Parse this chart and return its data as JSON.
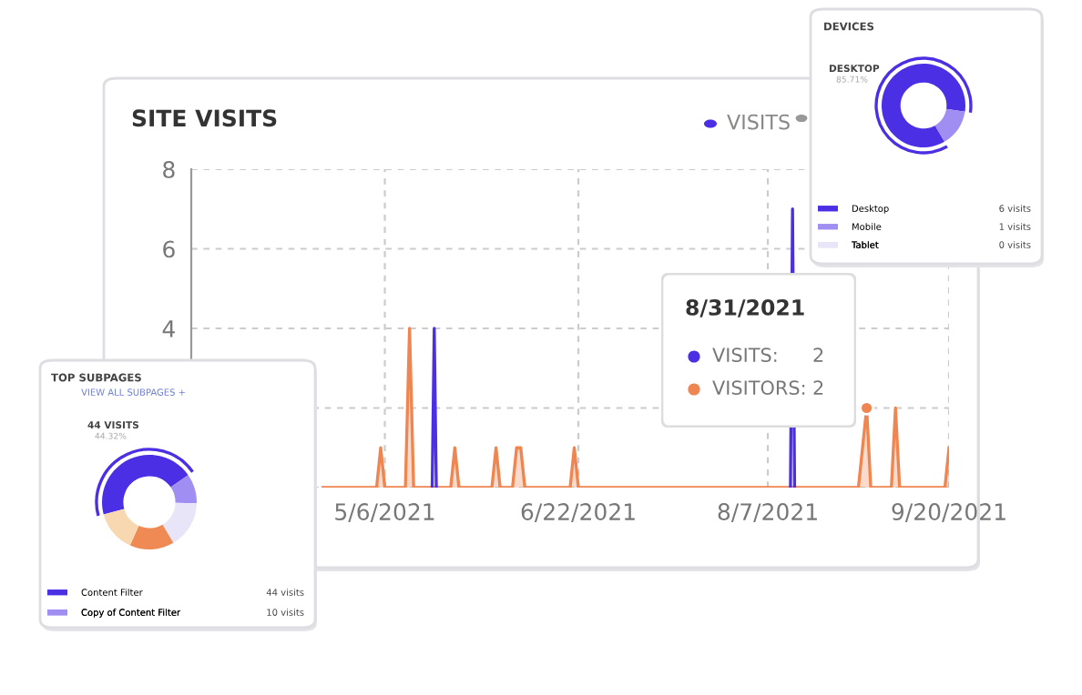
{
  "chart_data": [
    {
      "type": "area",
      "title": "SITE VISITS",
      "xlim": [
        "2021-03-20",
        "2021-09-20"
      ],
      "ylim": [
        0,
        8
      ],
      "xticks": [
        {
          "value": "2021-05-06",
          "label": "5/6/2021"
        },
        {
          "value": "2021-06-22",
          "label": "6/22/2021"
        },
        {
          "value": "2021-08-07",
          "label": "8/7/2021"
        },
        {
          "value": "2021-09-20",
          "label": "9/20/2021"
        }
      ],
      "yticks": [
        {
          "value": 0,
          "label": null
        },
        {
          "value": 2,
          "label": null
        },
        4,
        6,
        8
      ],
      "grid": true,
      "legend": "top right",
      "annotations": [
        "8/31/2021",
        "VISITS:",
        "2",
        "2"
      ],
      "series": [
        {
          "name": "VISITS",
          "type": "line",
          "color": "#4b2fe4",
          "x": [
            "2021-05-17T12:00",
            "2021-05-18",
            "2021-05-18T12:00",
            null,
            "2021-08-12T12:00",
            "2021-08-13",
            "2021-08-13T12:00"
          ],
          "values": [
            0,
            4,
            0,
            null,
            0,
            7,
            0
          ]
        },
        {
          "name": "VISITORS:",
          "type": "area",
          "color": "#ef8550",
          "x": [
            "2021-04-21",
            "2021-05-04",
            "2021-05-05",
            "2021-05-06",
            "2021-05-11",
            "2021-05-12",
            "2021-05-13",
            "2021-05-22",
            "2021-05-23",
            "2021-05-24",
            "2021-06-01",
            "2021-06-02",
            "2021-06-03",
            "2021-06-06",
            "2021-06-07",
            "2021-06-08",
            "2021-06-09",
            "2021-06-20",
            "2021-06-21",
            "2021-06-22",
            "2021-08-10",
            "2021-08-11",
            "2021-08-15",
            "2021-08-16",
            "2021-08-20",
            "2021-08-21",
            "2021-08-28",
            "2021-08-29",
            "2021-08-31",
            "2021-09-01",
            "2021-09-06",
            "2021-09-07",
            "2021-09-08",
            "2021-09-19",
            "2021-09-20"
          ],
          "values": [
            0,
            0,
            1,
            0,
            0,
            4,
            0,
            0,
            1,
            0,
            0,
            1,
            0,
            0,
            1,
            1,
            0,
            0,
            1,
            0,
            0,
            0,
            0,
            0,
            0,
            0,
            0,
            0,
            2,
            0,
            0,
            2,
            0,
            0,
            1
          ]
        }
      ]
    },
    {
      "type": "donut",
      "title": "DEVICES",
      "categories": [
        "Desktop",
        "Mobile",
        "Tablet"
      ],
      "values": [
        6,
        1,
        0
      ],
      "colors": [
        "#4b2fe4",
        "#a08ef2",
        "#e8e5f9"
      ],
      "value_labels": [
        "6 visits",
        "1 visits",
        "0 visits"
      ],
      "annotations": [
        "DESKTOP",
        "85.71%"
      ],
      "legend": "bottom"
    },
    {
      "type": "donut",
      "title": "TOP SUBPAGES",
      "subtitle": "VIEW ALL SUBPAGES +",
      "categories": [
        "Content Filter",
        "Copy of Content Filter",
        null,
        null,
        null
      ],
      "values": [
        44,
        10,
        16,
        15,
        14
      ],
      "colors": [
        "#4b2fe4",
        "#a08ef2",
        "#e8e5f9",
        "#ef8a55",
        "#f8d8b0"
      ],
      "value_labels": [
        "44 visits",
        "10 visits",
        null,
        null,
        null
      ],
      "annotations": [
        "44 VISITS",
        "44.32%"
      ],
      "legend": "bottom"
    }
  ]
}
